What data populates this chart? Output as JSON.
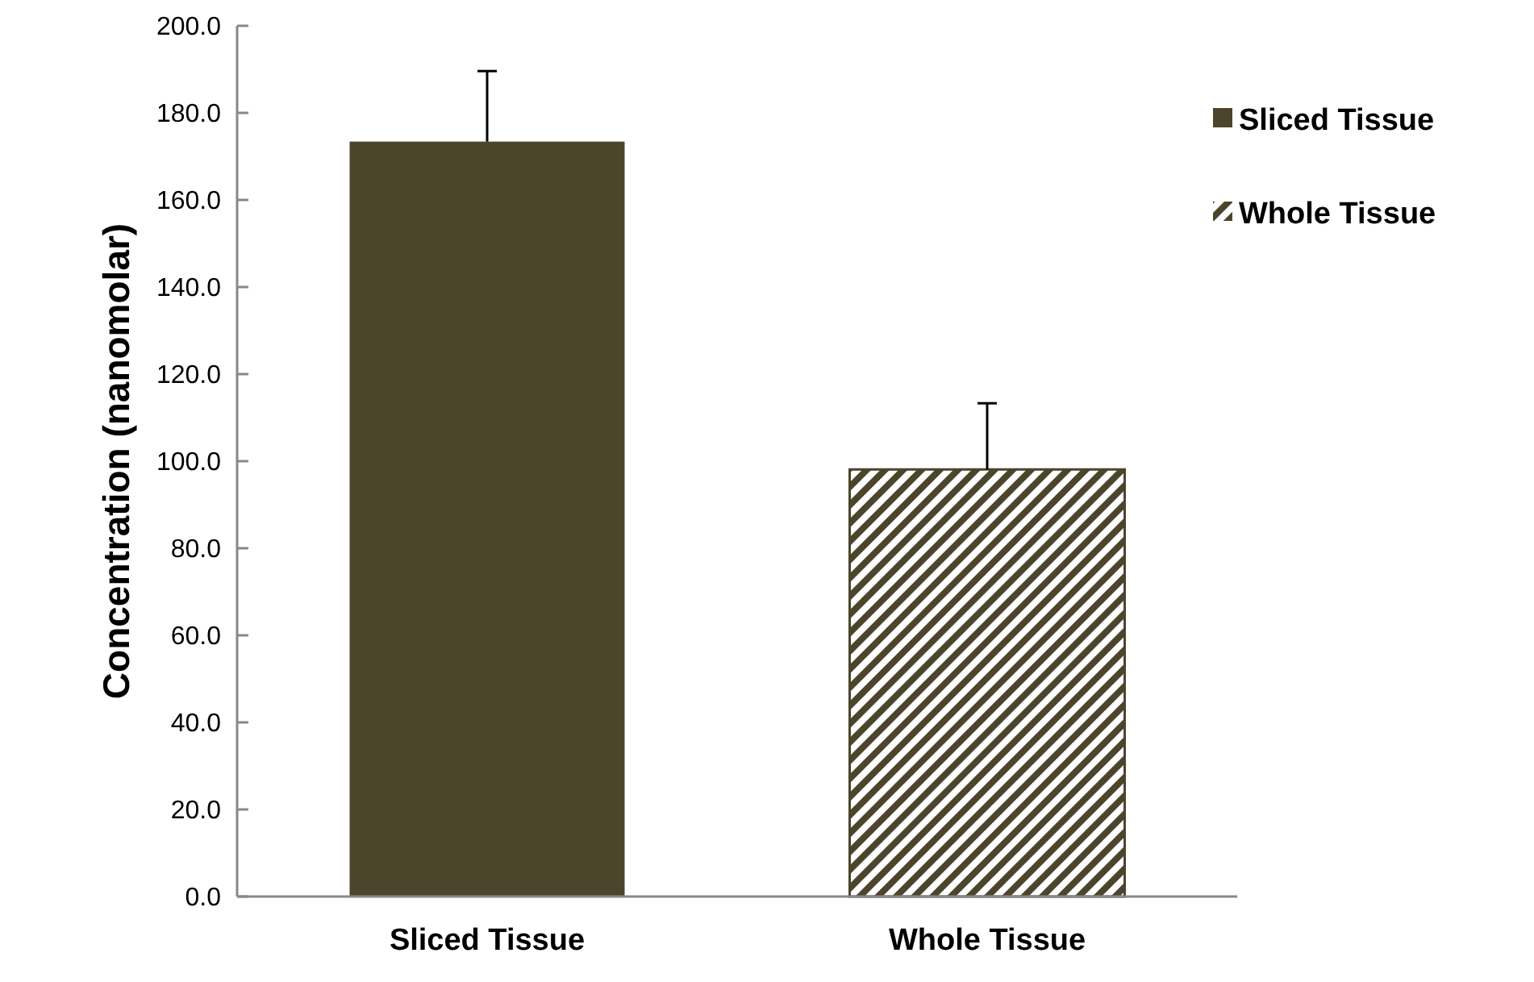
{
  "chart_data": {
    "type": "bar",
    "ylabel": "Concentration (nanomolar)",
    "categories": [
      "Sliced Tissue",
      "Whole Tissue"
    ],
    "series": [
      {
        "name": "Sliced Tissue",
        "color": "#4b452c",
        "values": [
          173.4,
          null
        ],
        "errors": [
          [
            173.4,
            189.6
          ],
          null
        ]
      },
      {
        "name": "Whole Tissue",
        "color": "#4b452c",
        "values": [
          null,
          98.1
        ],
        "errors": [
          null,
          [
            98.1,
            113.3
          ]
        ]
      }
    ],
    "ylim": [
      0,
      200
    ],
    "yticks": [
      {
        "value": 0,
        "label": "0.0"
      },
      {
        "value": 20,
        "label": "20.0"
      },
      {
        "value": 40,
        "label": "40.0"
      },
      {
        "value": 60,
        "label": "60.0"
      },
      {
        "value": 80,
        "label": "80.0"
      },
      {
        "value": 100,
        "label": "100.0"
      },
      {
        "value": 120,
        "label": "120.0"
      },
      {
        "value": 140,
        "label": "140.0"
      },
      {
        "value": 160,
        "label": "160.0"
      },
      {
        "value": 180,
        "label": "180.0"
      },
      {
        "value": 200,
        "label": "200.0"
      }
    ],
    "grid": false,
    "legend": "right"
  }
}
